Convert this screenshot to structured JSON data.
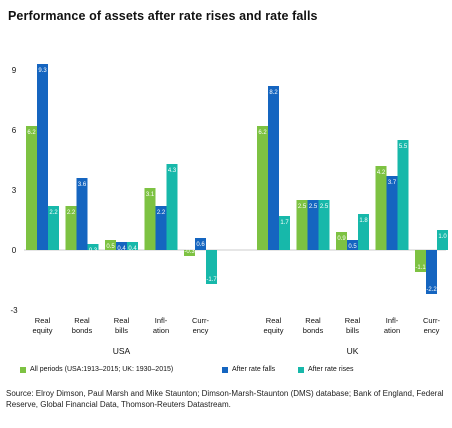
{
  "chart_data": {
    "type": "bar",
    "title": "Performance of assets after rate rises and rate falls",
    "ylim": [
      -3,
      10
    ],
    "yticks": [
      -3,
      0,
      3,
      6,
      9
    ],
    "grid": false,
    "legend_position": "bottom",
    "groups": [
      {
        "name": "USA",
        "categories": [
          "Real equity",
          "Real bonds",
          "Real bills",
          "Infl- ation",
          "Curr- ency"
        ],
        "series": [
          {
            "name": "All periods (USA:1913–2015; UK: 1930–2015)",
            "color": "#7dc242",
            "values": [
              6.2,
              2.2,
              0.5,
              3.1,
              -0.3
            ],
            "labels": [
              "6.2",
              "2.2",
              "0.5",
              "3.1",
              "-0.3"
            ]
          },
          {
            "name": "After rate falls",
            "color": "#1565c0",
            "values": [
              9.3,
              3.6,
              0.4,
              2.2,
              0.6
            ],
            "labels": [
              "9.3",
              "3.6",
              "0.4",
              "2.2",
              "0.6"
            ]
          },
          {
            "name": "After rate rises",
            "color": "#17b8aa",
            "values": [
              2.2,
              0.3,
              0.4,
              4.3,
              -1.7
            ],
            "labels": [
              "2.2",
              "0.3",
              "0.4",
              "4.3",
              "-1.7"
            ]
          }
        ]
      },
      {
        "name": "UK",
        "categories": [
          "Real equity",
          "Real bonds",
          "Real bills",
          "Infl- ation",
          "Curr- ency"
        ],
        "series": [
          {
            "name": "All periods (USA:1913–2015; UK: 1930–2015)",
            "color": "#7dc242",
            "values": [
              6.2,
              2.5,
              0.9,
              4.2,
              -1.1
            ],
            "labels": [
              "6.2",
              "2.5",
              "0.9",
              "4.2",
              "-1.1"
            ]
          },
          {
            "name": "After rate falls",
            "color": "#1565c0",
            "values": [
              8.2,
              2.5,
              0.5,
              3.7,
              -2.2
            ],
            "labels": [
              "8.2",
              "2.5",
              "0.5",
              "3.7",
              "-2.2"
            ]
          },
          {
            "name": "After rate rises",
            "color": "#17b8aa",
            "values": [
              1.7,
              2.5,
              1.8,
              5.5,
              1.0
            ],
            "labels": [
              "1.7",
              "2.5",
              "1.8",
              "5.5",
              "1.0"
            ]
          }
        ]
      }
    ]
  },
  "legend": [
    {
      "label": "All periods (USA:1913–2015; UK: 1930–2015)",
      "color": "#7dc242"
    },
    {
      "label": "After rate falls",
      "color": "#1565c0"
    },
    {
      "label": "After rate rises",
      "color": "#17b8aa"
    }
  ],
  "source_note": "Source: Elroy Dimson, Paul Marsh and Mike Staunton; Dimson-Marsh-Staunton (DMS) database; Bank of England, Federal Reserve, Global Financial Data, Thomson-Reuters Datastream."
}
